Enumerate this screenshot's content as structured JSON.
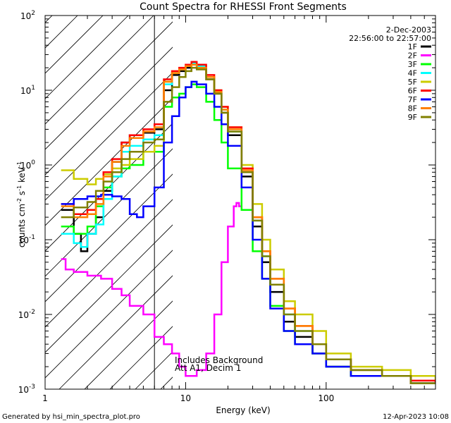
{
  "colors": {
    "background": "#ffffff",
    "axis": "#000000",
    "hatch": "#000000",
    "text": "#000000"
  },
  "chart_data": {
    "type": "line",
    "title": "Count Spectra for RHESSI Front Segments",
    "xlabel": "Energy (keV)",
    "ylabel_parts": {
      "p1": "counts cm",
      "s1": "-2",
      "p2": " s",
      "s2": "-1",
      "p3": " keV",
      "s3": "-1"
    },
    "x_scale": "log",
    "y_scale": "log",
    "xlim": [
      1,
      600
    ],
    "ylim": [
      0.001,
      100
    ],
    "x_tick_labels": [
      {
        "value": 1,
        "label": "1"
      },
      {
        "value": 10,
        "label": "10"
      },
      {
        "value": 100,
        "label": "100"
      }
    ],
    "y_tick_labels": [
      {
        "value": 0.001,
        "base": "10",
        "exp": "-3"
      },
      {
        "value": 0.01,
        "base": "10",
        "exp": "-2"
      },
      {
        "value": 0.1,
        "base": "10",
        "exp": "-1"
      },
      {
        "value": 1,
        "base": "10",
        "exp": "0"
      },
      {
        "value": 10,
        "base": "10",
        "exp": "1"
      },
      {
        "value": 100,
        "base": "10",
        "exp": "2"
      }
    ],
    "attenuator_region": {
      "x_min": 1,
      "x_max": 6,
      "style": "hatched"
    },
    "date": "2-Dec-2003",
    "time_range": "22:56:00 to 22:57:00",
    "annotations": [
      "Includes Background",
      "Att A1, Decim 1"
    ],
    "legend_position": "top-right",
    "footer_left": "Generated by hsi_min_spectra_plot.pro",
    "footer_right": "12-Apr-2023 10:08",
    "series": [
      {
        "name": "1F",
        "color": "#000000",
        "points": [
          [
            1.3,
            0.25
          ],
          [
            1.6,
            0.12
          ],
          [
            1.8,
            0.07
          ],
          [
            2.0,
            0.12
          ],
          [
            2.3,
            0.2
          ],
          [
            2.6,
            0.45
          ],
          [
            3.0,
            1.1
          ],
          [
            3.5,
            2.0
          ],
          [
            4.0,
            2.5
          ],
          [
            5.0,
            2.7
          ],
          [
            6.0,
            3.0
          ],
          [
            7.0,
            10
          ],
          [
            8.0,
            16
          ],
          [
            9.0,
            18
          ],
          [
            10.0,
            20
          ],
          [
            11.0,
            22
          ],
          [
            12.0,
            20
          ],
          [
            14.0,
            14
          ],
          [
            16.0,
            9
          ],
          [
            18.0,
            5
          ],
          [
            20.0,
            2.5
          ],
          [
            25.0,
            0.7
          ],
          [
            30.0,
            0.15
          ],
          [
            35.0,
            0.05
          ],
          [
            40.0,
            0.02
          ],
          [
            50.0,
            0.008
          ],
          [
            60.0,
            0.005
          ],
          [
            80.0,
            0.003
          ],
          [
            100.0,
            0.002
          ],
          [
            150.0,
            0.0015
          ],
          [
            250.0,
            0.0015
          ],
          [
            400.0,
            0.0012
          ],
          [
            600.0,
            0.0012
          ]
        ]
      },
      {
        "name": "2F",
        "color": "#ff00ff",
        "points": [
          [
            1.3,
            0.055
          ],
          [
            1.4,
            0.04
          ],
          [
            1.6,
            0.037
          ],
          [
            2.0,
            0.033
          ],
          [
            2.5,
            0.03
          ],
          [
            3.0,
            0.022
          ],
          [
            3.5,
            0.018
          ],
          [
            4.0,
            0.013
          ],
          [
            5.0,
            0.01
          ],
          [
            6.0,
            0.005
          ],
          [
            7.0,
            0.004
          ],
          [
            8.0,
            0.003
          ],
          [
            9.0,
            0.002
          ],
          [
            10.0,
            0.0015
          ],
          [
            12.0,
            0.0018
          ],
          [
            14.0,
            0.003
          ],
          [
            16.0,
            0.01
          ],
          [
            18.0,
            0.05
          ],
          [
            20.0,
            0.15
          ],
          [
            22.0,
            0.28
          ],
          [
            23.0,
            0.31
          ],
          [
            24.0,
            0.28
          ],
          [
            25.0,
            0.25
          ]
        ]
      },
      {
        "name": "3F",
        "color": "#00ff00",
        "points": [
          [
            1.3,
            0.15
          ],
          [
            1.6,
            0.12
          ],
          [
            2.0,
            0.15
          ],
          [
            2.3,
            0.28
          ],
          [
            2.6,
            0.5
          ],
          [
            3.0,
            0.7
          ],
          [
            3.5,
            0.9
          ],
          [
            4.0,
            1.0
          ],
          [
            5.0,
            1.5
          ],
          [
            6.0,
            1.5
          ],
          [
            7.0,
            6
          ],
          [
            8.0,
            8
          ],
          [
            9.0,
            9
          ],
          [
            10.0,
            11
          ],
          [
            11.0,
            12
          ],
          [
            12.0,
            11
          ],
          [
            14.0,
            7
          ],
          [
            16.0,
            4
          ],
          [
            18.0,
            2
          ],
          [
            20.0,
            0.9
          ],
          [
            25.0,
            0.25
          ],
          [
            30.0,
            0.07
          ],
          [
            35.0,
            0.03
          ],
          [
            40.0,
            0.013
          ],
          [
            50.0,
            0.006
          ],
          [
            60.0,
            0.004
          ],
          [
            80.0,
            0.003
          ],
          [
            100.0,
            0.002
          ],
          [
            150.0,
            0.0015
          ],
          [
            250.0,
            0.0015
          ],
          [
            400.0,
            0.0012
          ],
          [
            600.0,
            0.0012
          ]
        ]
      },
      {
        "name": "4F",
        "color": "#00ffff",
        "points": [
          [
            1.3,
            0.12
          ],
          [
            1.6,
            0.09
          ],
          [
            1.8,
            0.08
          ],
          [
            2.0,
            0.12
          ],
          [
            2.3,
            0.16
          ],
          [
            2.6,
            0.35
          ],
          [
            3.0,
            0.7
          ],
          [
            3.5,
            1.5
          ],
          [
            4.0,
            1.8
          ],
          [
            5.0,
            2.2
          ],
          [
            6.0,
            2.5
          ],
          [
            7.0,
            12
          ],
          [
            8.0,
            17
          ],
          [
            9.0,
            19
          ],
          [
            10.0,
            21
          ],
          [
            11.0,
            23
          ],
          [
            12.0,
            21
          ],
          [
            14.0,
            15
          ],
          [
            16.0,
            9.5
          ],
          [
            18.0,
            5.5
          ],
          [
            20.0,
            2.8
          ],
          [
            25.0,
            0.8
          ],
          [
            30.0,
            0.18
          ],
          [
            35.0,
            0.06
          ],
          [
            40.0,
            0.025
          ],
          [
            50.0,
            0.01
          ],
          [
            60.0,
            0.006
          ],
          [
            80.0,
            0.004
          ],
          [
            100.0,
            0.0025
          ],
          [
            150.0,
            0.0018
          ],
          [
            250.0,
            0.0015
          ],
          [
            400.0,
            0.0012
          ],
          [
            600.0,
            0.0012
          ]
        ]
      },
      {
        "name": "5F",
        "color": "#cccc00",
        "points": [
          [
            1.3,
            0.85
          ],
          [
            1.6,
            0.65
          ],
          [
            2.0,
            0.55
          ],
          [
            2.3,
            0.65
          ],
          [
            2.6,
            0.75
          ],
          [
            3.0,
            0.9
          ],
          [
            3.5,
            1.0
          ],
          [
            4.0,
            1.2
          ],
          [
            5.0,
            1.5
          ],
          [
            6.0,
            1.8
          ],
          [
            7.0,
            13
          ],
          [
            8.0,
            17
          ],
          [
            9.0,
            19
          ],
          [
            10.0,
            21
          ],
          [
            11.0,
            22
          ],
          [
            12.0,
            20
          ],
          [
            14.0,
            15
          ],
          [
            16.0,
            10
          ],
          [
            18.0,
            6
          ],
          [
            20.0,
            3.2
          ],
          [
            25.0,
            1.0
          ],
          [
            30.0,
            0.3
          ],
          [
            35.0,
            0.1
          ],
          [
            40.0,
            0.04
          ],
          [
            50.0,
            0.015
          ],
          [
            60.0,
            0.01
          ],
          [
            80.0,
            0.006
          ],
          [
            100.0,
            0.003
          ],
          [
            150.0,
            0.002
          ],
          [
            250.0,
            0.0018
          ],
          [
            400.0,
            0.0015
          ],
          [
            600.0,
            0.0012
          ]
        ]
      },
      {
        "name": "6F",
        "color": "#ff0000",
        "points": [
          [
            1.3,
            0.3
          ],
          [
            1.6,
            0.22
          ],
          [
            2.0,
            0.25
          ],
          [
            2.3,
            0.35
          ],
          [
            2.6,
            0.8
          ],
          [
            3.0,
            1.2
          ],
          [
            3.5,
            2.0
          ],
          [
            4.0,
            2.5
          ],
          [
            5.0,
            3.0
          ],
          [
            6.0,
            3.5
          ],
          [
            7.0,
            14
          ],
          [
            8.0,
            18
          ],
          [
            9.0,
            20
          ],
          [
            10.0,
            22
          ],
          [
            11.0,
            24
          ],
          [
            12.0,
            22
          ],
          [
            14.0,
            16
          ],
          [
            16.0,
            10
          ],
          [
            18.0,
            6
          ],
          [
            20.0,
            3.2
          ],
          [
            25.0,
            0.9
          ],
          [
            30.0,
            0.2
          ],
          [
            35.0,
            0.07
          ],
          [
            40.0,
            0.03
          ],
          [
            50.0,
            0.012
          ],
          [
            60.0,
            0.007
          ],
          [
            80.0,
            0.004
          ],
          [
            100.0,
            0.0025
          ],
          [
            150.0,
            0.0018
          ],
          [
            250.0,
            0.0015
          ],
          [
            400.0,
            0.0013
          ],
          [
            600.0,
            0.0012
          ]
        ]
      },
      {
        "name": "7F",
        "color": "#0000ff",
        "points": [
          [
            1.3,
            0.3
          ],
          [
            1.6,
            0.35
          ],
          [
            2.0,
            0.38
          ],
          [
            2.5,
            0.4
          ],
          [
            3.0,
            0.38
          ],
          [
            3.5,
            0.35
          ],
          [
            4.0,
            0.22
          ],
          [
            4.5,
            0.2
          ],
          [
            5.0,
            0.28
          ],
          [
            6.0,
            0.5
          ],
          [
            7.0,
            2.0
          ],
          [
            8.0,
            4.5
          ],
          [
            9.0,
            8
          ],
          [
            10.0,
            11
          ],
          [
            11.0,
            13
          ],
          [
            12.0,
            12
          ],
          [
            14.0,
            9
          ],
          [
            16.0,
            6
          ],
          [
            18.0,
            3.5
          ],
          [
            20.0,
            1.8
          ],
          [
            25.0,
            0.5
          ],
          [
            30.0,
            0.1
          ],
          [
            35.0,
            0.03
          ],
          [
            40.0,
            0.012
          ],
          [
            50.0,
            0.006
          ],
          [
            60.0,
            0.004
          ],
          [
            80.0,
            0.003
          ],
          [
            100.0,
            0.002
          ],
          [
            150.0,
            0.0015
          ],
          [
            250.0,
            0.0015
          ],
          [
            400.0,
            0.0012
          ],
          [
            600.0,
            0.0012
          ]
        ]
      },
      {
        "name": "8F",
        "color": "#ff8000",
        "points": [
          [
            1.3,
            0.28
          ],
          [
            1.6,
            0.2
          ],
          [
            2.0,
            0.22
          ],
          [
            2.3,
            0.3
          ],
          [
            2.6,
            0.7
          ],
          [
            3.0,
            1.1
          ],
          [
            3.5,
            1.8
          ],
          [
            4.0,
            2.3
          ],
          [
            5.0,
            2.8
          ],
          [
            6.0,
            3.2
          ],
          [
            7.0,
            13
          ],
          [
            8.0,
            17
          ],
          [
            9.0,
            19
          ],
          [
            10.0,
            21
          ],
          [
            11.0,
            22
          ],
          [
            12.0,
            20
          ],
          [
            14.0,
            15
          ],
          [
            16.0,
            9.5
          ],
          [
            18.0,
            5.5
          ],
          [
            20.0,
            3.0
          ],
          [
            25.0,
            0.85
          ],
          [
            30.0,
            0.2
          ],
          [
            35.0,
            0.07
          ],
          [
            40.0,
            0.03
          ],
          [
            50.0,
            0.012
          ],
          [
            60.0,
            0.007
          ],
          [
            80.0,
            0.004
          ],
          [
            100.0,
            0.0025
          ],
          [
            150.0,
            0.0018
          ],
          [
            250.0,
            0.0015
          ],
          [
            400.0,
            0.0012
          ],
          [
            600.0,
            0.0012
          ]
        ]
      },
      {
        "name": "9F",
        "color": "#808000",
        "points": [
          [
            1.3,
            0.2
          ],
          [
            1.6,
            0.27
          ],
          [
            2.0,
            0.32
          ],
          [
            2.3,
            0.45
          ],
          [
            2.6,
            0.6
          ],
          [
            3.0,
            0.8
          ],
          [
            3.5,
            1.2
          ],
          [
            4.0,
            1.5
          ],
          [
            5.0,
            2.0
          ],
          [
            6.0,
            2.2
          ],
          [
            7.0,
            7
          ],
          [
            8.0,
            11
          ],
          [
            9.0,
            15
          ],
          [
            10.0,
            18
          ],
          [
            11.0,
            20
          ],
          [
            12.0,
            19
          ],
          [
            14.0,
            14
          ],
          [
            16.0,
            9
          ],
          [
            18.0,
            5
          ],
          [
            20.0,
            2.8
          ],
          [
            25.0,
            0.8
          ],
          [
            30.0,
            0.18
          ],
          [
            35.0,
            0.06
          ],
          [
            40.0,
            0.025
          ],
          [
            50.0,
            0.01
          ],
          [
            60.0,
            0.006
          ],
          [
            80.0,
            0.004
          ],
          [
            100.0,
            0.0025
          ],
          [
            150.0,
            0.0018
          ],
          [
            250.0,
            0.0015
          ],
          [
            400.0,
            0.0012
          ],
          [
            600.0,
            0.0012
          ]
        ]
      }
    ]
  }
}
